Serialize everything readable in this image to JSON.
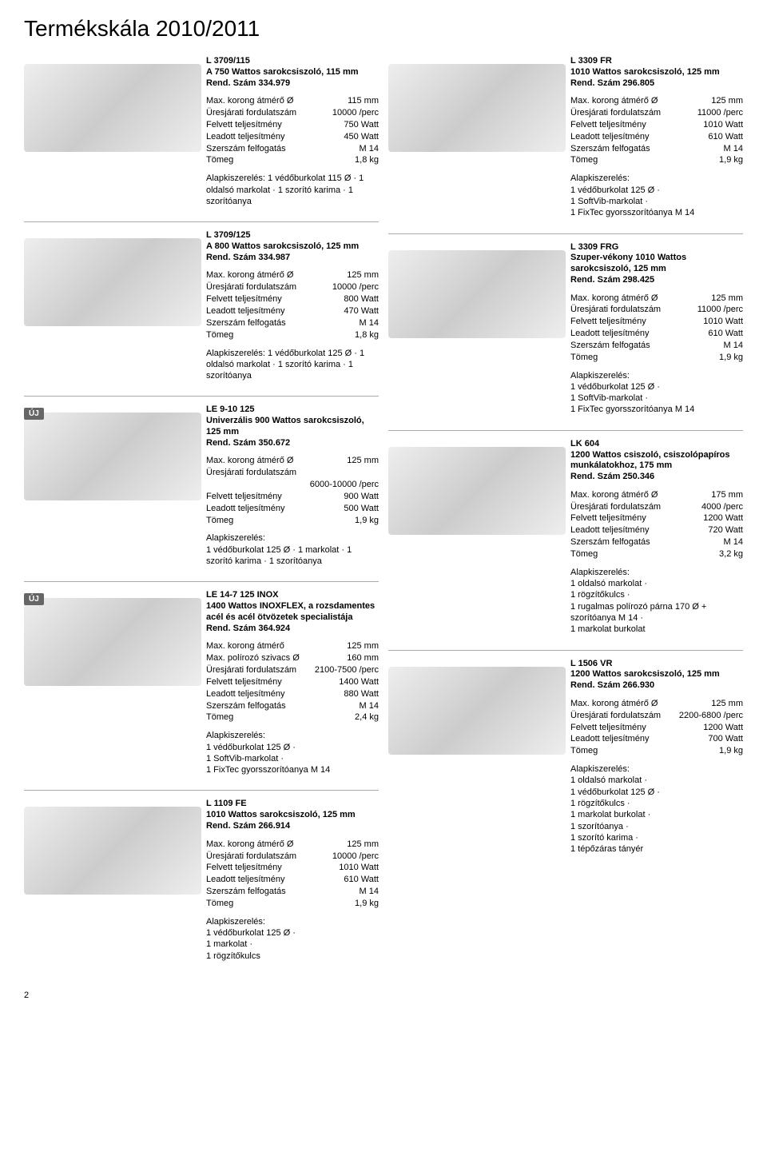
{
  "page": {
    "title": "Termékskála 2010/2011",
    "page_number": "2"
  },
  "label_uj": "ÚJ",
  "left_products": [
    {
      "title_l1": "L 3709/115",
      "title_l2": "A 750 Wattos sarokcsiszoló, 115 mm",
      "title_l3": "Rend. Szám 334.979",
      "specs": [
        {
          "l": "Max. korong átmérő Ø",
          "v": "115 mm"
        },
        {
          "l": "Üresjárati fordulatszám",
          "v": "10000 /perc"
        },
        {
          "l": "Felvett teljesítmény",
          "v": "750 Watt"
        },
        {
          "l": "Leadott teljesítmény",
          "v": "450 Watt"
        },
        {
          "l": "Szerszám felfogatás",
          "v": "M 14"
        },
        {
          "l": "Tömeg",
          "v": "1,8 kg"
        }
      ],
      "acc": "Alapkiszerelés: 1 védőburkolat 115 Ø · 1 oldalsó markolat · 1 szorító karima · 1 szorítóanya"
    },
    {
      "title_l1": "L 3709/125",
      "title_l2": "A 800 Wattos sarokcsiszoló, 125 mm",
      "title_l3": "Rend. Szám 334.987",
      "specs": [
        {
          "l": "Max. korong átmérő Ø",
          "v": "125 mm"
        },
        {
          "l": "Üresjárati fordulatszám",
          "v": "10000 /perc"
        },
        {
          "l": "Felvett teljesítmény",
          "v": "800 Watt"
        },
        {
          "l": "Leadott teljesítmény",
          "v": "470 Watt"
        },
        {
          "l": "Szerszám felfogatás",
          "v": "M 14"
        },
        {
          "l": "Tömeg",
          "v": "1,8 kg"
        }
      ],
      "acc": "Alapkiszerelés: 1 védőburkolat 125 Ø · 1 oldalsó markolat · 1 szorító karima · 1 szorítóanya"
    },
    {
      "badge": true,
      "title_l1": "LE 9-10 125",
      "title_l2": "Univerzális 900 Wattos sarokcsiszoló, 125 mm",
      "title_l3": "Rend. Szám 350.672",
      "specs": [
        {
          "l": "Max. korong átmérő Ø",
          "v": "125 mm"
        },
        {
          "l": "Üresjárati fordulatszám",
          "v": ""
        },
        {
          "l": "",
          "v": "6000-10000 /perc"
        },
        {
          "l": "Felvett teljesítmény",
          "v": "900 Watt"
        },
        {
          "l": "Leadott teljesítmény",
          "v": "500 Watt"
        },
        {
          "l": "Tömeg",
          "v": "1,9 kg"
        }
      ],
      "acc": "Alapkiszerelés:\n1 védőburkolat 125 Ø · 1 markolat · 1 szorító karima · 1 szorítóanya"
    },
    {
      "badge": true,
      "title_l1": "LE 14-7 125 INOX",
      "title_l2": "1400 Wattos INOXFLEX, a rozsdamentes acél és acél ötvözetek specialistája",
      "title_l3": "Rend. Szám 364.924",
      "specs": [
        {
          "l": "Max. korong átmérő",
          "v": "125 mm"
        },
        {
          "l": "Max. polírozó szivacs Ø",
          "v": "160 mm"
        },
        {
          "l": "Üresjárati fordulatszám",
          "v": "2100-7500 /perc"
        },
        {
          "l": "Felvett teljesítmény",
          "v": "1400 Watt"
        },
        {
          "l": "Leadott teljesítmény",
          "v": "880 Watt"
        },
        {
          "l": "Szerszám felfogatás",
          "v": "M 14"
        },
        {
          "l": "Tömeg",
          "v": "2,4 kg"
        }
      ],
      "acc": "Alapkiszerelés:\n1 védőburkolat 125 Ø ·\n1 SoftVib-markolat ·\n1 FixTec gyorsszorítóanya M 14"
    },
    {
      "title_l1": "L 1109 FE",
      "title_l2": "1010 Wattos sarokcsiszoló, 125 mm",
      "title_l3": "Rend. Szám 266.914",
      "specs": [
        {
          "l": "Max. korong átmérő Ø",
          "v": "125 mm"
        },
        {
          "l": "Üresjárati fordulatszám",
          "v": "10000 /perc"
        },
        {
          "l": "Felvett teljesítmény",
          "v": "1010 Watt"
        },
        {
          "l": "Leadott teljesítmény",
          "v": "610 Watt"
        },
        {
          "l": "Szerszám felfogatás",
          "v": "M 14"
        },
        {
          "l": "Tömeg",
          "v": "1,9 kg"
        }
      ],
      "acc": "Alapkiszerelés:\n1 védőburkolat 125 Ø ·\n1 markolat ·\n1 rögzítőkulcs"
    }
  ],
  "right_products": [
    {
      "has_image": true,
      "title_l1": "L 3309 FR",
      "title_l2": "1010 Wattos sarokcsiszoló, 125 mm",
      "title_l3": "Rend. Szám 296.805",
      "specs": [
        {
          "l": "Max. korong átmérő Ø",
          "v": "125 mm"
        },
        {
          "l": "Üresjárati fordulatszám",
          "v": "11000 /perc"
        },
        {
          "l": "Felvett teljesítmény",
          "v": "1010 Watt"
        },
        {
          "l": "Leadott teljesítmény",
          "v": "610 Watt"
        },
        {
          "l": "Szerszám felfogatás",
          "v": "M 14"
        },
        {
          "l": "Tömeg",
          "v": "1,9 kg"
        }
      ],
      "acc": "Alapkiszerelés:\n1 védőburkolat 125 Ø ·\n1 SoftVib-markolat ·\n1 FixTec gyorsszorítóanya M 14"
    },
    {
      "has_image": true,
      "title_l1": "L 3309 FRG",
      "title_l2": "Szuper-vékony 1010 Wattos sarokcsiszoló, 125 mm",
      "title_l3": "Rend. Szám 298.425",
      "specs": [
        {
          "l": "Max. korong átmérő Ø",
          "v": "125 mm"
        },
        {
          "l": "Üresjárati fordulatszám",
          "v": "11000 /perc"
        },
        {
          "l": "Felvett teljesítmény",
          "v": "1010 Watt"
        },
        {
          "l": "Leadott teljesítmény",
          "v": "610 Watt"
        },
        {
          "l": "Szerszám felfogatás",
          "v": "M 14"
        },
        {
          "l": "Tömeg",
          "v": "1,9 kg"
        }
      ],
      "acc": "Alapkiszerelés:\n1 védőburkolat 125 Ø ·\n1 SoftVib-markolat ·\n1 FixTec gyorsszorítóanya M 14"
    },
    {
      "has_image": true,
      "title_l1": "LK 604",
      "title_l2": "1200 Wattos csiszoló, csiszolópapíros munkálatokhoz, 175 mm",
      "title_l3": "Rend. Szám 250.346",
      "specs": [
        {
          "l": "Max. korong átmérő Ø",
          "v": "175 mm"
        },
        {
          "l": "Üresjárati fordulatszám",
          "v": "4000 /perc"
        },
        {
          "l": "Felvett teljesítmény",
          "v": "1200 Watt"
        },
        {
          "l": "Leadott teljesítmény",
          "v": "720 Watt"
        },
        {
          "l": "Szerszám felfogatás",
          "v": "M 14"
        },
        {
          "l": "Tömeg",
          "v": "3,2 kg"
        }
      ],
      "acc": "Alapkiszerelés:\n1 oldalsó markolat ·\n1 rögzítőkulcs ·\n1 rugalmas polírozó párna 170 Ø + szorítóanya M 14 ·\n1 markolat burkolat"
    },
    {
      "has_image": true,
      "title_l1": "L 1506 VR",
      "title_l2": "1200 Wattos sarokcsiszoló, 125 mm",
      "title_l3": "Rend. Szám 266.930",
      "specs": [
        {
          "l": "Max. korong átmérő Ø",
          "v": "125 mm"
        },
        {
          "l": "Üresjárati fordulatszám",
          "v": "2200-6800 /perc"
        },
        {
          "l": "Felvett teljesítmény",
          "v": "1200 Watt"
        },
        {
          "l": "Leadott teljesítmény",
          "v": "700 Watt"
        },
        {
          "l": "Tömeg",
          "v": "1,9 kg"
        }
      ],
      "acc": "Alapkiszerelés:\n1 oldalsó markolat ·\n1 védőburkolat 125 Ø ·\n1 rögzítőkulcs ·\n1 markolat burkolat ·\n1 szorítóanya ·\n1 szorító karima ·\n1 tépőzáras tányér"
    }
  ]
}
